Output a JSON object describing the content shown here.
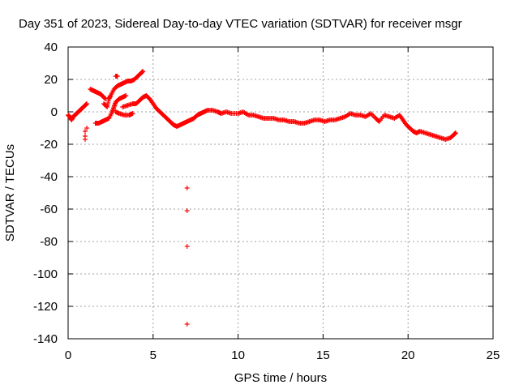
{
  "chart_data": {
    "type": "scatter",
    "title": "Day 351 of 2023, Sidereal Day-to-day VTEC variation (SDTVAR) for receiver msgr",
    "xlabel": "GPS time / hours",
    "ylabel": "SDTVAR / TECUs",
    "xlim": [
      0,
      25
    ],
    "ylim": [
      -140,
      40
    ],
    "x_ticks": [
      0,
      5,
      10,
      15,
      20,
      25
    ],
    "x_tick_labels": [
      "0",
      "5",
      "10",
      "15",
      "20",
      "25"
    ],
    "y_ticks": [
      40,
      20,
      0,
      -20,
      -40,
      -60,
      -80,
      -100,
      -120,
      -140
    ],
    "y_tick_labels": [
      "40",
      "20",
      "0",
      "-20",
      "-40",
      "-60",
      "-80",
      "-100",
      "-120",
      "-140"
    ],
    "grid": true,
    "legend": "none",
    "marker": "+",
    "series": [
      {
        "name": "SDTVAR",
        "color": "#ff0000",
        "points": [
          [
            0.0,
            -2
          ],
          [
            0.1,
            -3
          ],
          [
            0.2,
            -5
          ],
          [
            0.3,
            -3
          ],
          [
            0.4,
            -2
          ],
          [
            0.5,
            -1
          ],
          [
            0.6,
            0
          ],
          [
            0.7,
            1
          ],
          [
            0.8,
            2
          ],
          [
            0.9,
            3
          ],
          [
            1.0,
            4
          ],
          [
            1.1,
            5
          ],
          [
            1.0,
            -12
          ],
          [
            1.0,
            -15
          ],
          [
            1.0,
            -17
          ],
          [
            1.1,
            -10
          ],
          [
            1.3,
            14
          ],
          [
            1.5,
            13
          ],
          [
            1.7,
            12
          ],
          [
            1.9,
            11
          ],
          [
            2.0,
            10
          ],
          [
            2.2,
            8
          ],
          [
            2.1,
            5
          ],
          [
            2.3,
            3
          ],
          [
            2.4,
            8
          ],
          [
            2.5,
            10
          ],
          [
            2.7,
            14
          ],
          [
            2.9,
            16
          ],
          [
            3.1,
            17
          ],
          [
            3.3,
            18
          ],
          [
            3.5,
            19
          ],
          [
            3.7,
            19
          ],
          [
            3.9,
            20
          ],
          [
            4.1,
            22
          ],
          [
            4.3,
            24
          ],
          [
            4.4,
            25
          ],
          [
            2.8,
            22
          ],
          [
            2.9,
            22
          ],
          [
            1.6,
            -7
          ],
          [
            1.8,
            -7
          ],
          [
            2.0,
            -6
          ],
          [
            2.2,
            -5
          ],
          [
            2.4,
            -4
          ],
          [
            2.6,
            0
          ],
          [
            2.7,
            3
          ],
          [
            2.8,
            6
          ],
          [
            3.0,
            8
          ],
          [
            3.2,
            9
          ],
          [
            3.4,
            10
          ],
          [
            2.8,
            0
          ],
          [
            3.0,
            -1
          ],
          [
            3.3,
            -2
          ],
          [
            3.6,
            -2
          ],
          [
            3.8,
            -1
          ],
          [
            3.2,
            3
          ],
          [
            3.5,
            4
          ],
          [
            3.8,
            5
          ],
          [
            4.0,
            5
          ],
          [
            4.2,
            7
          ],
          [
            4.4,
            9
          ],
          [
            4.6,
            10
          ],
          [
            4.8,
            8
          ],
          [
            5.0,
            5
          ],
          [
            5.2,
            2
          ],
          [
            5.4,
            0
          ],
          [
            5.6,
            -2
          ],
          [
            5.8,
            -4
          ],
          [
            6.0,
            -6
          ],
          [
            6.2,
            -8
          ],
          [
            6.4,
            -9
          ],
          [
            6.6,
            -8
          ],
          [
            6.8,
            -7
          ],
          [
            7.0,
            -6
          ],
          [
            7.2,
            -5
          ],
          [
            7.4,
            -4
          ],
          [
            7.6,
            -2
          ],
          [
            7.8,
            -1
          ],
          [
            8.0,
            0
          ],
          [
            8.2,
            1
          ],
          [
            8.5,
            1
          ],
          [
            8.8,
            0
          ],
          [
            9.0,
            -1
          ],
          [
            9.3,
            0
          ],
          [
            9.6,
            -1
          ],
          [
            10.0,
            -1
          ],
          [
            10.3,
            0
          ],
          [
            10.6,
            -2
          ],
          [
            10.9,
            -2
          ],
          [
            11.2,
            -3
          ],
          [
            11.5,
            -4
          ],
          [
            11.8,
            -4
          ],
          [
            12.1,
            -4
          ],
          [
            12.4,
            -5
          ],
          [
            12.7,
            -5
          ],
          [
            13.0,
            -6
          ],
          [
            13.3,
            -6
          ],
          [
            13.6,
            -7
          ],
          [
            13.9,
            -7
          ],
          [
            14.2,
            -6
          ],
          [
            14.5,
            -5
          ],
          [
            14.8,
            -5
          ],
          [
            15.1,
            -6
          ],
          [
            15.4,
            -5
          ],
          [
            15.7,
            -5
          ],
          [
            16.0,
            -4
          ],
          [
            16.3,
            -3
          ],
          [
            16.6,
            -1
          ],
          [
            16.9,
            -2
          ],
          [
            17.2,
            -2
          ],
          [
            17.5,
            -3
          ],
          [
            17.8,
            -1
          ],
          [
            18.1,
            -4
          ],
          [
            18.3,
            -6
          ],
          [
            18.6,
            -2
          ],
          [
            18.9,
            -3
          ],
          [
            19.2,
            -4
          ],
          [
            19.5,
            -2
          ],
          [
            19.7,
            -5
          ],
          [
            19.9,
            -8
          ],
          [
            20.1,
            -10
          ],
          [
            20.3,
            -12
          ],
          [
            20.5,
            -13
          ],
          [
            20.7,
            -12
          ],
          [
            21.0,
            -13
          ],
          [
            21.3,
            -14
          ],
          [
            21.6,
            -15
          ],
          [
            21.9,
            -16
          ],
          [
            22.2,
            -17
          ],
          [
            22.5,
            -16
          ],
          [
            22.7,
            -14
          ],
          [
            22.8,
            -13
          ],
          [
            7.0,
            -47
          ],
          [
            7.0,
            -61
          ],
          [
            7.0,
            -83
          ],
          [
            7.0,
            -131
          ]
        ]
      }
    ]
  }
}
